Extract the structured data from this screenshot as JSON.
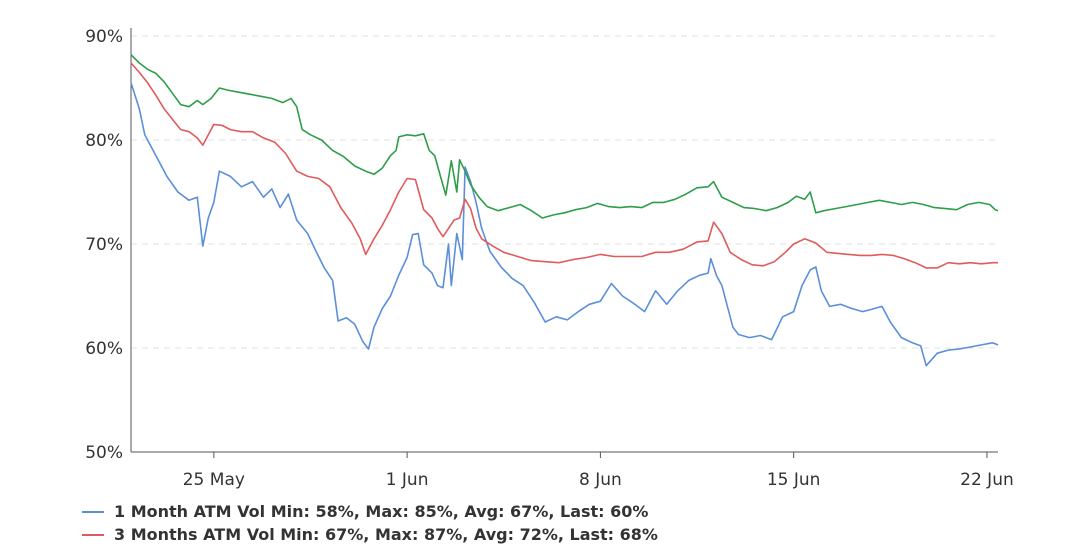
{
  "chart_data": {
    "type": "line",
    "title": "",
    "ylim": [
      50,
      90
    ],
    "y_ticks": [
      "90%",
      "80%",
      "70%",
      "60%",
      "50%"
    ],
    "y_tick_values": [
      90,
      80,
      70,
      60,
      50
    ],
    "x_ticks": [
      "25 May",
      "1 Jun",
      "8 Jun",
      "15 Jun",
      "22 Jun"
    ],
    "x_tick_positions": [
      3,
      10,
      17,
      24,
      31
    ],
    "xlim": [
      0,
      31.4
    ],
    "grid": "horizontal dashed",
    "legend_position": "bottom-left",
    "series": [
      {
        "name": "1 Month ATM Vol",
        "legend_text": "1 Month ATM Vol Min: 58%, Max: 85%, Avg: 67%, Last: 60%",
        "color": "#5B8FDB",
        "points": [
          [
            0,
            85.5
          ],
          [
            0.3,
            83
          ],
          [
            0.5,
            80.5
          ],
          [
            0.9,
            78.5
          ],
          [
            1.3,
            76.5
          ],
          [
            1.7,
            75
          ],
          [
            2.1,
            74.2
          ],
          [
            2.4,
            74.5
          ],
          [
            2.6,
            69.8
          ],
          [
            2.8,
            72.5
          ],
          [
            3.0,
            74
          ],
          [
            3.2,
            77
          ],
          [
            3.6,
            76.5
          ],
          [
            4.0,
            75.5
          ],
          [
            4.4,
            76
          ],
          [
            4.8,
            74.5
          ],
          [
            5.1,
            75.3
          ],
          [
            5.4,
            73.5
          ],
          [
            5.7,
            74.8
          ],
          [
            6.0,
            72.3
          ],
          [
            6.4,
            71
          ],
          [
            6.7,
            69.3
          ],
          [
            7.0,
            67.7
          ],
          [
            7.3,
            66.5
          ],
          [
            7.5,
            62.6
          ],
          [
            7.8,
            62.9
          ],
          [
            8.1,
            62.3
          ],
          [
            8.4,
            60.6
          ],
          [
            8.6,
            59.9
          ],
          [
            8.8,
            62
          ],
          [
            9.1,
            63.8
          ],
          [
            9.4,
            65
          ],
          [
            9.7,
            67
          ],
          [
            10.0,
            68.7
          ],
          [
            10.2,
            70.9
          ],
          [
            10.4,
            71
          ],
          [
            10.6,
            68
          ],
          [
            10.9,
            67.2
          ],
          [
            11.1,
            66
          ],
          [
            11.3,
            65.8
          ],
          [
            11.5,
            70
          ],
          [
            11.6,
            66
          ],
          [
            11.8,
            71
          ],
          [
            12.0,
            68.5
          ],
          [
            12.1,
            77.4
          ],
          [
            12.3,
            76
          ],
          [
            12.5,
            74
          ],
          [
            12.7,
            71.5
          ],
          [
            13.0,
            69.3
          ],
          [
            13.4,
            67.8
          ],
          [
            13.8,
            66.7
          ],
          [
            14.2,
            66
          ],
          [
            14.6,
            64.4
          ],
          [
            15.0,
            62.5
          ],
          [
            15.4,
            63
          ],
          [
            15.8,
            62.7
          ],
          [
            16.2,
            63.5
          ],
          [
            16.6,
            64.2
          ],
          [
            17.0,
            64.5
          ],
          [
            17.4,
            66.2
          ],
          [
            17.8,
            65
          ],
          [
            18.2,
            64.3
          ],
          [
            18.6,
            63.5
          ],
          [
            19.0,
            65.5
          ],
          [
            19.4,
            64.2
          ],
          [
            19.8,
            65.5
          ],
          [
            20.2,
            66.5
          ],
          [
            20.6,
            67
          ],
          [
            20.9,
            67.2
          ],
          [
            21.0,
            68.6
          ],
          [
            21.2,
            67
          ],
          [
            21.4,
            66
          ],
          [
            21.6,
            64
          ],
          [
            21.8,
            62
          ],
          [
            22.0,
            61.3
          ],
          [
            22.4,
            61
          ],
          [
            22.8,
            61.2
          ],
          [
            23.2,
            60.8
          ],
          [
            23.6,
            63
          ],
          [
            24.0,
            63.5
          ],
          [
            24.3,
            66
          ],
          [
            24.6,
            67.5
          ],
          [
            24.8,
            67.8
          ],
          [
            25.0,
            65.5
          ],
          [
            25.3,
            64
          ],
          [
            25.7,
            64.2
          ],
          [
            26.1,
            63.8
          ],
          [
            26.5,
            63.5
          ],
          [
            26.8,
            63.7
          ],
          [
            27.2,
            64
          ],
          [
            27.5,
            62.5
          ],
          [
            27.9,
            61
          ],
          [
            28.3,
            60.5
          ],
          [
            28.6,
            60.2
          ],
          [
            28.8,
            58.3
          ],
          [
            29.2,
            59.5
          ],
          [
            29.6,
            59.8
          ],
          [
            30.0,
            59.9
          ],
          [
            30.4,
            60.1
          ],
          [
            30.8,
            60.3
          ],
          [
            31.2,
            60.5
          ],
          [
            31.4,
            60.3
          ]
        ]
      },
      {
        "name": "3 Months ATM Vol",
        "legend_text": "3 Months ATM Vol Min: 67%, Max: 87%, Avg: 72%, Last: 68%",
        "color": "#E05B5B",
        "points": [
          [
            0,
            87.4
          ],
          [
            0.3,
            86.5
          ],
          [
            0.6,
            85.5
          ],
          [
            0.9,
            84.3
          ],
          [
            1.2,
            83
          ],
          [
            1.5,
            82
          ],
          [
            1.8,
            81
          ],
          [
            2.1,
            80.8
          ],
          [
            2.4,
            80.2
          ],
          [
            2.6,
            79.5
          ],
          [
            2.8,
            80.5
          ],
          [
            3.0,
            81.5
          ],
          [
            3.3,
            81.4
          ],
          [
            3.6,
            81
          ],
          [
            4.0,
            80.8
          ],
          [
            4.4,
            80.8
          ],
          [
            4.8,
            80.2
          ],
          [
            5.2,
            79.8
          ],
          [
            5.6,
            78.7
          ],
          [
            6.0,
            77
          ],
          [
            6.4,
            76.5
          ],
          [
            6.8,
            76.3
          ],
          [
            7.2,
            75.5
          ],
          [
            7.6,
            73.5
          ],
          [
            8.0,
            72
          ],
          [
            8.3,
            70.5
          ],
          [
            8.5,
            69
          ],
          [
            8.8,
            70.5
          ],
          [
            9.1,
            71.8
          ],
          [
            9.4,
            73.3
          ],
          [
            9.7,
            75
          ],
          [
            10.0,
            76.3
          ],
          [
            10.3,
            76.2
          ],
          [
            10.6,
            73.3
          ],
          [
            10.9,
            72.5
          ],
          [
            11.1,
            71.5
          ],
          [
            11.3,
            70.7
          ],
          [
            11.5,
            71.5
          ],
          [
            11.7,
            72.3
          ],
          [
            11.9,
            72.5
          ],
          [
            12.1,
            74.3
          ],
          [
            12.3,
            73.4
          ],
          [
            12.5,
            71.5
          ],
          [
            12.7,
            70.5
          ],
          [
            13.1,
            69.8
          ],
          [
            13.5,
            69.2
          ],
          [
            14.0,
            68.8
          ],
          [
            14.5,
            68.4
          ],
          [
            15.0,
            68.3
          ],
          [
            15.5,
            68.2
          ],
          [
            16.0,
            68.5
          ],
          [
            16.5,
            68.7
          ],
          [
            17.0,
            69
          ],
          [
            17.5,
            68.8
          ],
          [
            18.0,
            68.8
          ],
          [
            18.5,
            68.8
          ],
          [
            19.0,
            69.2
          ],
          [
            19.5,
            69.2
          ],
          [
            20.0,
            69.5
          ],
          [
            20.5,
            70.2
          ],
          [
            20.9,
            70.3
          ],
          [
            21.1,
            72.1
          ],
          [
            21.4,
            71
          ],
          [
            21.7,
            69.2
          ],
          [
            22.1,
            68.5
          ],
          [
            22.5,
            68
          ],
          [
            22.9,
            67.9
          ],
          [
            23.3,
            68.3
          ],
          [
            23.7,
            69.2
          ],
          [
            24.0,
            70
          ],
          [
            24.4,
            70.5
          ],
          [
            24.8,
            70.1
          ],
          [
            25.2,
            69.2
          ],
          [
            25.6,
            69.1
          ],
          [
            26.0,
            69
          ],
          [
            26.4,
            68.9
          ],
          [
            26.8,
            68.9
          ],
          [
            27.2,
            69
          ],
          [
            27.6,
            68.9
          ],
          [
            28.0,
            68.6
          ],
          [
            28.4,
            68.2
          ],
          [
            28.8,
            67.7
          ],
          [
            29.2,
            67.7
          ],
          [
            29.6,
            68.2
          ],
          [
            30.0,
            68.1
          ],
          [
            30.4,
            68.2
          ],
          [
            30.8,
            68.1
          ],
          [
            31.2,
            68.2
          ],
          [
            31.4,
            68.2
          ]
        ]
      },
      {
        "name": "",
        "color": "#2E9E4A",
        "points": [
          [
            0,
            88.2
          ],
          [
            0.3,
            87.4
          ],
          [
            0.6,
            86.8
          ],
          [
            0.9,
            86.4
          ],
          [
            1.2,
            85.6
          ],
          [
            1.5,
            84.5
          ],
          [
            1.8,
            83.4
          ],
          [
            2.1,
            83.2
          ],
          [
            2.4,
            83.8
          ],
          [
            2.6,
            83.4
          ],
          [
            2.9,
            84
          ],
          [
            3.2,
            85
          ],
          [
            3.5,
            84.8
          ],
          [
            3.9,
            84.6
          ],
          [
            4.3,
            84.4
          ],
          [
            4.7,
            84.2
          ],
          [
            5.1,
            84
          ],
          [
            5.5,
            83.6
          ],
          [
            5.8,
            84
          ],
          [
            6.0,
            83.2
          ],
          [
            6.2,
            81
          ],
          [
            6.5,
            80.5
          ],
          [
            6.9,
            80
          ],
          [
            7.3,
            79
          ],
          [
            7.7,
            78.4
          ],
          [
            8.1,
            77.5
          ],
          [
            8.5,
            77
          ],
          [
            8.8,
            76.7
          ],
          [
            9.1,
            77.3
          ],
          [
            9.4,
            78.5
          ],
          [
            9.6,
            79
          ],
          [
            9.7,
            80.3
          ],
          [
            10.0,
            80.5
          ],
          [
            10.3,
            80.4
          ],
          [
            10.6,
            80.6
          ],
          [
            10.8,
            79
          ],
          [
            11.0,
            78.5
          ],
          [
            11.2,
            76.6
          ],
          [
            11.4,
            74.7
          ],
          [
            11.6,
            78
          ],
          [
            11.8,
            75
          ],
          [
            11.9,
            78.1
          ],
          [
            12.1,
            77
          ],
          [
            12.3,
            75.7
          ],
          [
            12.6,
            74.5
          ],
          [
            12.9,
            73.6
          ],
          [
            13.3,
            73.2
          ],
          [
            13.7,
            73.5
          ],
          [
            14.1,
            73.8
          ],
          [
            14.5,
            73.2
          ],
          [
            14.9,
            72.5
          ],
          [
            15.3,
            72.8
          ],
          [
            15.7,
            73
          ],
          [
            16.1,
            73.3
          ],
          [
            16.5,
            73.5
          ],
          [
            16.9,
            73.9
          ],
          [
            17.3,
            73.6
          ],
          [
            17.7,
            73.5
          ],
          [
            18.1,
            73.6
          ],
          [
            18.5,
            73.5
          ],
          [
            18.9,
            74
          ],
          [
            19.3,
            74
          ],
          [
            19.7,
            74.3
          ],
          [
            20.1,
            74.8
          ],
          [
            20.5,
            75.4
          ],
          [
            20.9,
            75.5
          ],
          [
            21.1,
            76
          ],
          [
            21.4,
            74.5
          ],
          [
            21.8,
            74
          ],
          [
            22.2,
            73.5
          ],
          [
            22.6,
            73.4
          ],
          [
            23.0,
            73.2
          ],
          [
            23.4,
            73.5
          ],
          [
            23.8,
            74
          ],
          [
            24.1,
            74.6
          ],
          [
            24.4,
            74.3
          ],
          [
            24.6,
            75
          ],
          [
            24.8,
            73
          ],
          [
            25.1,
            73.2
          ],
          [
            25.5,
            73.4
          ],
          [
            25.9,
            73.6
          ],
          [
            26.3,
            73.8
          ],
          [
            26.7,
            74
          ],
          [
            27.1,
            74.2
          ],
          [
            27.5,
            74
          ],
          [
            27.9,
            73.8
          ],
          [
            28.3,
            74
          ],
          [
            28.7,
            73.8
          ],
          [
            29.1,
            73.5
          ],
          [
            29.5,
            73.4
          ],
          [
            29.9,
            73.3
          ],
          [
            30.3,
            73.8
          ],
          [
            30.7,
            74
          ],
          [
            31.1,
            73.8
          ],
          [
            31.3,
            73.3
          ],
          [
            31.4,
            73.2
          ]
        ]
      }
    ]
  }
}
